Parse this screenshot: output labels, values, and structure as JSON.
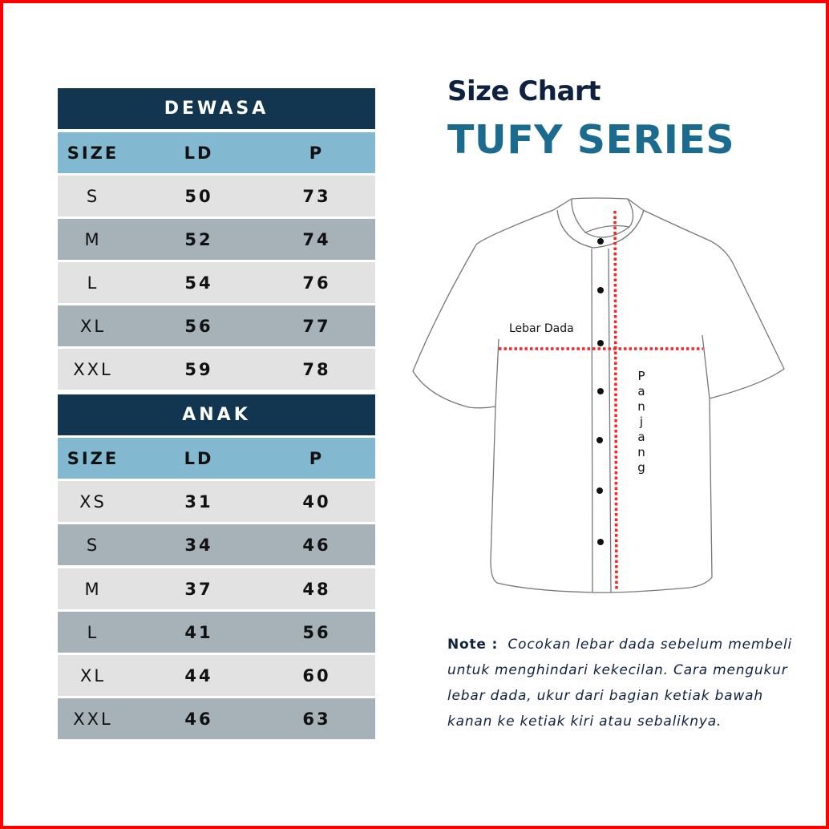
{
  "colors": {
    "header_dark": "#12364f",
    "header_light": "#82b9d0",
    "row_light": "#e2e2e2",
    "row_dark": "#a6b2b8",
    "title": "#0f2140",
    "series": "#1b6b8e",
    "measure_line": "#ff2020",
    "frame": "#ff0000"
  },
  "header": {
    "title": "Size Chart",
    "subtitle": "TUFY SERIES"
  },
  "tables": [
    {
      "title": "DEWASA",
      "columns": [
        "SIZE",
        "LD",
        "P"
      ],
      "rows": [
        [
          "S",
          "50",
          "73"
        ],
        [
          "M",
          "52",
          "74"
        ],
        [
          "L",
          "54",
          "76"
        ],
        [
          "XL",
          "56",
          "77"
        ],
        [
          "XXL",
          "59",
          "78"
        ]
      ]
    },
    {
      "title": "ANAK",
      "columns": [
        "SIZE",
        "LD",
        "P"
      ],
      "rows": [
        [
          "XS",
          "31",
          "40"
        ],
        [
          "S",
          "34",
          "46"
        ],
        [
          "M",
          "37",
          "48"
        ],
        [
          "L",
          "41",
          "56"
        ],
        [
          "XL",
          "44",
          "60"
        ],
        [
          "XXL",
          "46",
          "63"
        ]
      ]
    }
  ],
  "diagram": {
    "chest_label": "Lebar Dada",
    "length_label": "Panjang"
  },
  "note": {
    "label": "Note :",
    "text": "Cocokan lebar dada sebelum membeli untuk menghindari kekecilan. Cara mengukur lebar dada, ukur dari bagian ketiak bawah kanan ke ketiak kiri atau sebaliknya."
  }
}
